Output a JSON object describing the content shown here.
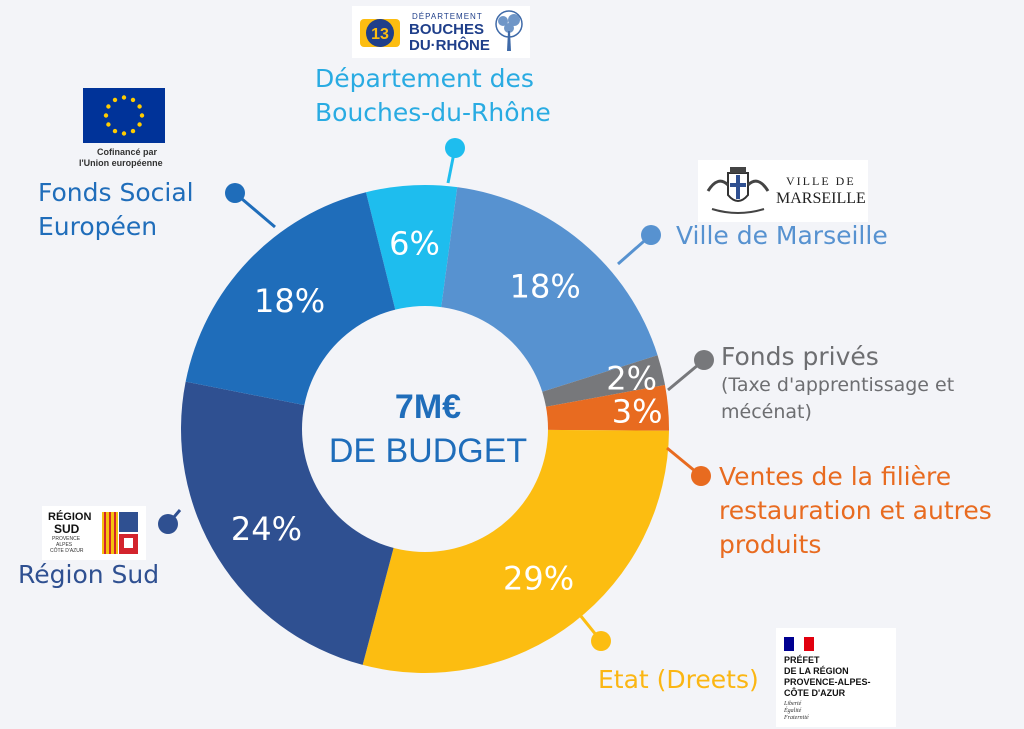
{
  "center": {
    "amount": "7M€",
    "caption": "DE BUDGET"
  },
  "chart_data": {
    "type": "pie",
    "style": "donut",
    "total_label": "7M€ DE BUDGET",
    "slices": [
      {
        "label": "Département des Bouches-du-Rhône",
        "value": 6,
        "text": "6%",
        "color": "#1ebdee"
      },
      {
        "label": "Ville de Marseille",
        "value": 18,
        "text": "18%",
        "color": "#5792d0"
      },
      {
        "label": "Fonds privés (Taxe d'apprentissage et mécénat)",
        "value": 2,
        "text": "2%",
        "color": "#77787b"
      },
      {
        "label": "Ventes de la filière restauration et autres produits",
        "value": 3,
        "text": "3%",
        "color": "#e86b20"
      },
      {
        "label": "Etat (Dreets)",
        "value": 29,
        "text": "29%",
        "color": "#fcbd11"
      },
      {
        "label": "Région Sud",
        "value": 24,
        "text": "24%",
        "color": "#2f5091"
      },
      {
        "label": "Fonds Social Européen",
        "value": 18,
        "text": "18%",
        "color": "#1f6dba"
      }
    ]
  },
  "labels": {
    "dept_line1": "Département des",
    "dept_line2": "Bouches-du-Rhône",
    "ville": "Ville de Marseille",
    "fonds_prives": "Fonds privés",
    "fonds_prives_sub1": "(Taxe d'apprentissage et",
    "fonds_prives_sub2": "mécénat)",
    "ventes_line1": "Ventes de la filière",
    "ventes_line2": "restauration et autres",
    "ventes_line3": "produits",
    "etat": "Etat (Dreets)",
    "region": "Région Sud",
    "fse_line1": "Fonds Social",
    "fse_line2": "Européen"
  },
  "logos": {
    "eu": {
      "line1": "Cofinancé par",
      "line2": "l'Union européenne",
      "flag_color": "#003399",
      "star_color": "#ffcc00"
    },
    "dept13": {
      "top": "DÉPARTEMENT",
      "line1": "BOUCHES",
      "line2": "DU·RHÔNE"
    },
    "marseille": {
      "line1": "VILLE DE",
      "line2": "MARSEILLE"
    },
    "region": {
      "line1": "RÉGION",
      "line2": "SUD",
      "sub1": "PROVENCE",
      "sub2": "ALPES",
      "sub3": "CÔTE D'AZUR"
    },
    "prefet": {
      "line1": "PRÉFET",
      "line2": "DE LA RÉGION",
      "line3": "PROVENCE-ALPES-",
      "line4": "CÔTE D'AZUR",
      "motto1": "Liberté",
      "motto2": "Égalité",
      "motto3": "Fraternité"
    }
  }
}
